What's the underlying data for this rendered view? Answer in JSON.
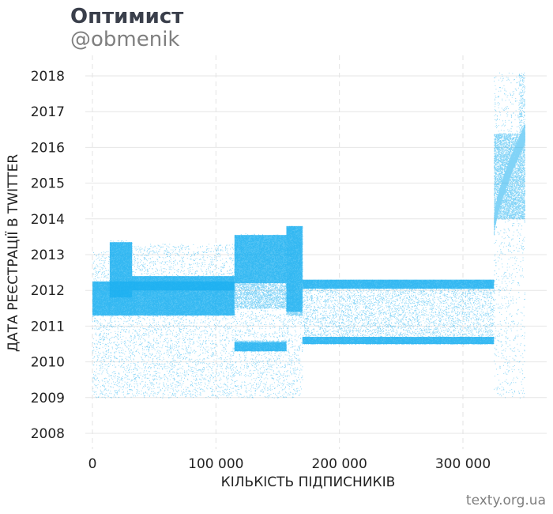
{
  "header": {
    "title": "Оптимист",
    "subtitle": "@obmenik"
  },
  "footer": {
    "source": "texty.org.ua"
  },
  "chart_data": {
    "type": "scatter",
    "title": "Оптимист",
    "subtitle": "@obmenik",
    "xlabel": "КІЛЬКІСТЬ ПІДПИСНИКІВ",
    "ylabel": "ДАТА РЕЄСТРАЦІЇ В TWITTER",
    "xlim": [
      -8000,
      368000
    ],
    "ylim": [
      2007.6,
      2018.4
    ],
    "x_ticks": [
      0,
      100000,
      200000,
      300000
    ],
    "x_tick_labels": [
      "0",
      "100 000",
      "200 000",
      "300 000"
    ],
    "y_ticks": [
      2008,
      2009,
      2010,
      2011,
      2012,
      2013,
      2014,
      2015,
      2016,
      2017,
      2018
    ],
    "y_tick_labels": [
      "2008",
      "2009",
      "2010",
      "2011",
      "2012",
      "2013",
      "2014",
      "2015",
      "2016",
      "2017",
      "2018"
    ],
    "grid": {
      "x": "dashed-vertical",
      "y": "solid-horizontal"
    },
    "point_color": "#1aaff0",
    "series": [
      {
        "description_x_range": [
          0,
          350000
        ],
        "segments": [
          {
            "x": [
              0,
              14000
            ],
            "y_range": [
              2009.0,
              2013.1
            ],
            "dense_bands": [
              [
                2011.3,
                2012.25
              ]
            ]
          },
          {
            "x": [
              14000,
              32000
            ],
            "y_range": [
              2009.0,
              2013.4
            ],
            "dense_bands": [
              [
                2011.3,
                2013.35
              ]
            ]
          },
          {
            "x": [
              32000,
              115000
            ],
            "y_range": [
              2009.0,
              2013.3
            ],
            "dense_bands": [
              [
                2012.0,
                2012.4
              ],
              [
                2011.3,
                2012.0
              ]
            ]
          },
          {
            "x": [
              115000,
              157000
            ],
            "y_range": [
              2009.0,
              2013.6
            ],
            "dense_bands": [
              [
                2010.3,
                2010.6
              ],
              [
                2011.5,
                2013.55
              ]
            ]
          },
          {
            "x": [
              157000,
              170000
            ],
            "y_range": [
              2009.0,
              2013.8
            ],
            "dense_bands": [
              [
                2011.3,
                2013.8
              ]
            ]
          },
          {
            "x": [
              170000,
              325000
            ],
            "y_range": [
              2010.5,
              2012.3
            ],
            "dense_bands": [
              [
                2012.05,
                2012.3
              ],
              [
                2010.5,
                2010.7
              ]
            ]
          },
          {
            "x": [
              325000,
              350000
            ],
            "y_range": [
              2009.0,
              2018.1
            ],
            "dense_bands": [
              [
                2014.0,
                2016.4
              ]
            ]
          }
        ]
      }
    ]
  }
}
